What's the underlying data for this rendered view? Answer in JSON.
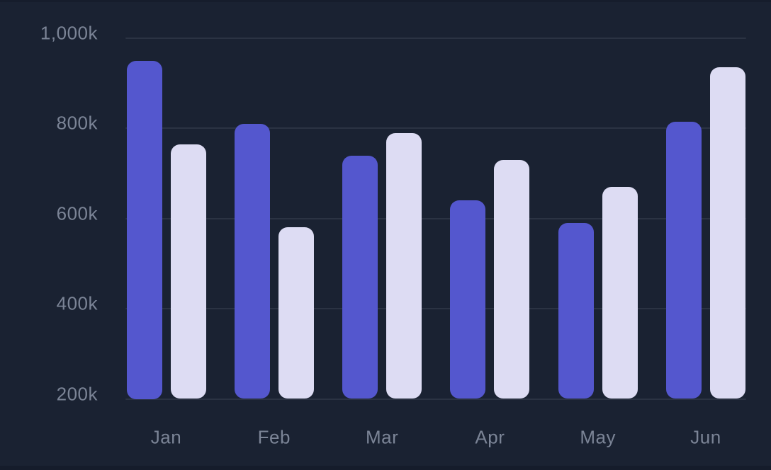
{
  "chart_data": {
    "type": "bar",
    "title": "",
    "unit": "k",
    "categories": [
      "Jan",
      "Feb",
      "Mar",
      "Apr",
      "May",
      "Jun"
    ],
    "series": [
      {
        "name": "series-1-purple",
        "color": "#5457ce",
        "values": [
          950,
          810,
          740,
          640,
          590,
          815
        ]
      },
      {
        "name": "series-2-lavender",
        "color": "#dddcf3",
        "values": [
          765,
          580,
          790,
          730,
          670,
          935
        ]
      }
    ],
    "y_axis": {
      "min": 200,
      "max": 1000,
      "step": 200,
      "tick_labels": [
        "200k",
        "400k",
        "600k",
        "800k",
        "1,000k"
      ]
    },
    "x_axis": {
      "tick_labels": [
        "Jan",
        "Feb",
        "Mar",
        "Apr",
        "May",
        "Jun"
      ]
    },
    "grid": true,
    "legend": "none",
    "colors": {
      "background": "#1a2232",
      "gridline": "#2b3343",
      "axis_label": "#7b8496"
    }
  }
}
